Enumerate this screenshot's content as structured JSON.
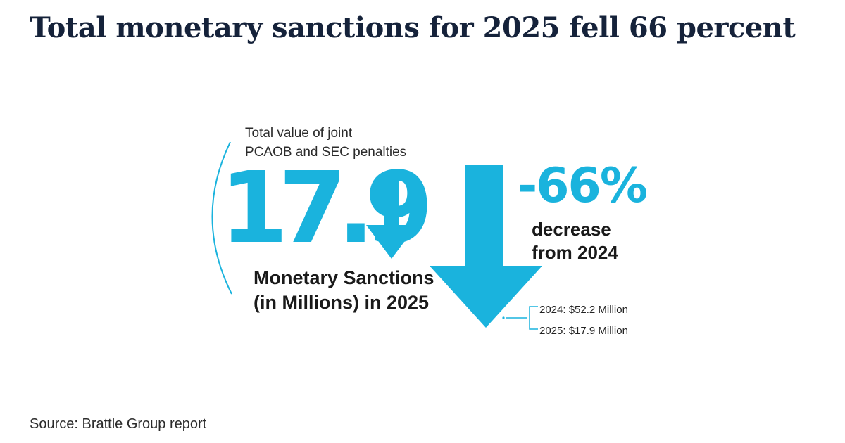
{
  "headline": "Total monetary sanctions for 2025 fell 66 percent",
  "subtitle": {
    "line1": "Total value of joint",
    "line2": "PCAOB and SEC penalties"
  },
  "accent_color": "#1ab3dd",
  "chart_data": {
    "type": "table",
    "title": "Total monetary sanctions for 2025 fell 66 percent",
    "headline_value": "17.9",
    "headline_value_label": {
      "line1": "Monetary Sanctions",
      "line2": "(in Millions) in 2025"
    },
    "percent_change": "-66%",
    "percent_change_label": {
      "line1": "decrease",
      "line2": "from 2024"
    },
    "comparison": [
      {
        "year": "2024",
        "value": 52.2,
        "unit": "Million",
        "label": "2024: $52.2 Million"
      },
      {
        "year": "2025",
        "value": 17.9,
        "unit": "Million",
        "label": "2025: $17.9 Million"
      }
    ]
  },
  "source": "Source: Brattle Group report"
}
